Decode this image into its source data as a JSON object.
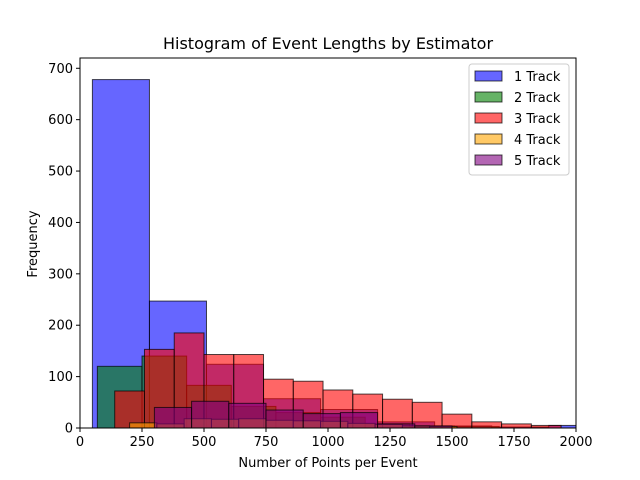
{
  "chart_data": {
    "type": "bar",
    "title": "Histogram of Event Lengths by Estimator",
    "xlabel": "Number of Points per Event",
    "ylabel": "Frequency",
    "xlim": [
      0,
      2000
    ],
    "ylim": [
      0,
      720
    ],
    "xticks": [
      0,
      250,
      500,
      750,
      1000,
      1250,
      1500,
      1750,
      2000
    ],
    "yticks": [
      0,
      100,
      200,
      300,
      400,
      500,
      600,
      700
    ],
    "grid": false,
    "legend_position": "top-right",
    "series": [
      {
        "name": "1 Track",
        "color": "#0000ff",
        "bins": [
          {
            "x0": 50,
            "x1": 280,
            "count": 678
          },
          {
            "x0": 280,
            "x1": 510,
            "count": 247
          },
          {
            "x0": 510,
            "x1": 740,
            "count": 124
          },
          {
            "x0": 740,
            "x1": 970,
            "count": 57
          },
          {
            "x0": 970,
            "x1": 1200,
            "count": 36
          },
          {
            "x0": 1200,
            "x1": 1430,
            "count": 12
          },
          {
            "x0": 1430,
            "x1": 1660,
            "count": 4
          },
          {
            "x0": 1660,
            "x1": 1890,
            "count": 2
          },
          {
            "x0": 1890,
            "x1": 2120,
            "count": 5
          }
        ]
      },
      {
        "name": "2 Track",
        "color": "#008000",
        "bins": [
          {
            "x0": 70,
            "x1": 250,
            "count": 120
          },
          {
            "x0": 250,
            "x1": 430,
            "count": 140
          },
          {
            "x0": 430,
            "x1": 610,
            "count": 83
          },
          {
            "x0": 610,
            "x1": 790,
            "count": 42
          },
          {
            "x0": 790,
            "x1": 970,
            "count": 30
          },
          {
            "x0": 970,
            "x1": 1150,
            "count": 21
          },
          {
            "x0": 1150,
            "x1": 1330,
            "count": 8
          },
          {
            "x0": 1330,
            "x1": 1510,
            "count": 4
          },
          {
            "x0": 1510,
            "x1": 1690,
            "count": 3
          }
        ]
      },
      {
        "name": "3 Track",
        "color": "#ff0000",
        "bins": [
          {
            "x0": 140,
            "x1": 260,
            "count": 72
          },
          {
            "x0": 260,
            "x1": 380,
            "count": 153
          },
          {
            "x0": 380,
            "x1": 500,
            "count": 185
          },
          {
            "x0": 500,
            "x1": 620,
            "count": 143
          },
          {
            "x0": 620,
            "x1": 740,
            "count": 143
          },
          {
            "x0": 740,
            "x1": 860,
            "count": 95
          },
          {
            "x0": 860,
            "x1": 980,
            "count": 91
          },
          {
            "x0": 980,
            "x1": 1100,
            "count": 74
          },
          {
            "x0": 1100,
            "x1": 1220,
            "count": 66
          },
          {
            "x0": 1220,
            "x1": 1340,
            "count": 56
          },
          {
            "x0": 1340,
            "x1": 1460,
            "count": 50
          },
          {
            "x0": 1460,
            "x1": 1580,
            "count": 27
          },
          {
            "x0": 1580,
            "x1": 1700,
            "count": 12
          },
          {
            "x0": 1700,
            "x1": 1820,
            "count": 8
          },
          {
            "x0": 1820,
            "x1": 1940,
            "count": 5
          }
        ]
      },
      {
        "name": "4 Track",
        "color": "#ffa500",
        "bins": [
          {
            "x0": 200,
            "x1": 310,
            "count": 10
          },
          {
            "x0": 310,
            "x1": 420,
            "count": 8
          },
          {
            "x0": 420,
            "x1": 530,
            "count": 18
          },
          {
            "x0": 530,
            "x1": 640,
            "count": 17
          },
          {
            "x0": 640,
            "x1": 750,
            "count": 18
          },
          {
            "x0": 750,
            "x1": 860,
            "count": 15
          },
          {
            "x0": 860,
            "x1": 970,
            "count": 14
          },
          {
            "x0": 970,
            "x1": 1080,
            "count": 13
          },
          {
            "x0": 1080,
            "x1": 1190,
            "count": 9
          },
          {
            "x0": 1190,
            "x1": 1300,
            "count": 7
          },
          {
            "x0": 1300,
            "x1": 1410,
            "count": 4
          },
          {
            "x0": 1410,
            "x1": 1520,
            "count": 3
          }
        ]
      },
      {
        "name": "5 Track",
        "color": "#800080",
        "bins": [
          {
            "x0": 300,
            "x1": 450,
            "count": 40
          },
          {
            "x0": 450,
            "x1": 600,
            "count": 52
          },
          {
            "x0": 600,
            "x1": 750,
            "count": 48
          },
          {
            "x0": 750,
            "x1": 900,
            "count": 35
          },
          {
            "x0": 900,
            "x1": 1050,
            "count": 28
          },
          {
            "x0": 1050,
            "x1": 1200,
            "count": 30
          },
          {
            "x0": 1200,
            "x1": 1350,
            "count": 8
          },
          {
            "x0": 1350,
            "x1": 1500,
            "count": 4
          }
        ]
      }
    ]
  }
}
